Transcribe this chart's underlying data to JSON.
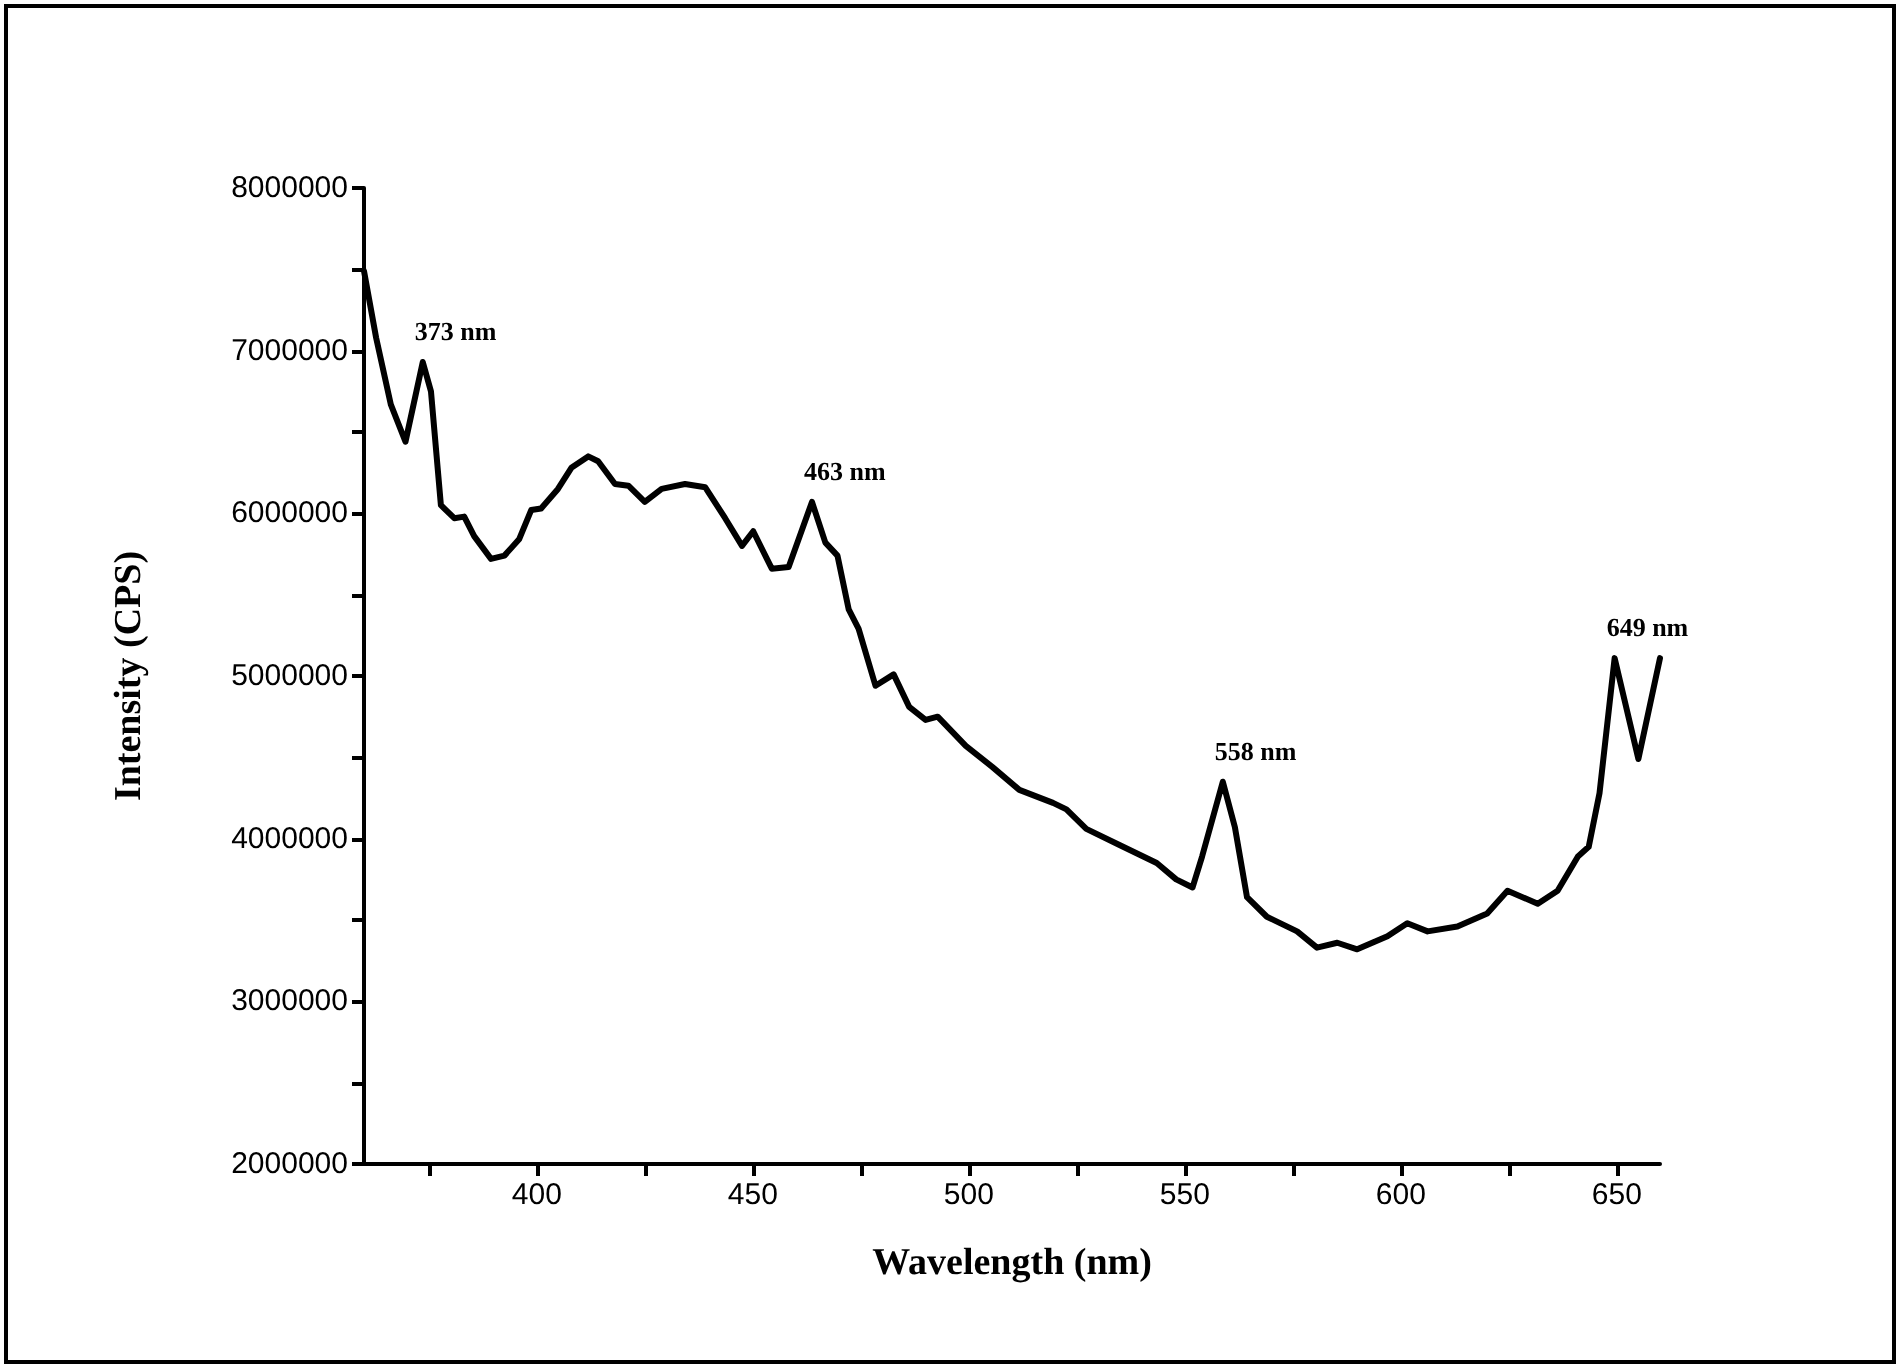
{
  "chart_data": {
    "type": "line",
    "xlabel": "Wavelength (nm)",
    "ylabel": "Intensity (CPS)",
    "xlim": [
      360,
      660
    ],
    "ylim": [
      2000000,
      8000000
    ],
    "xticks": [
      {
        "value": 375,
        "label": null
      },
      400,
      {
        "value": 425,
        "label": null
      },
      450,
      {
        "value": 475,
        "label": null
      },
      500,
      {
        "value": 525,
        "label": null
      },
      550,
      {
        "value": 575,
        "label": null
      },
      600,
      {
        "value": 625,
        "label": null
      },
      650
    ],
    "yticks": [
      2000000,
      {
        "value": 2500000,
        "label": null
      },
      3000000,
      {
        "value": 3500000,
        "label": null
      },
      4000000,
      {
        "value": 4500000,
        "label": null
      },
      5000000,
      {
        "value": 5500000,
        "label": null
      },
      6000000,
      {
        "value": 6500000,
        "label": null
      },
      7000000,
      {
        "value": 7500000,
        "label": null
      },
      8000000
    ],
    "grid": false,
    "marker": "none",
    "line_style": "solid",
    "annotations": [
      {
        "text": "373 nm",
        "x": 373.6,
        "y": 6930000
      },
      {
        "text": "463 nm",
        "x": 463.7,
        "y": 6070000
      },
      {
        "text": "558 nm",
        "x": 558.8,
        "y": 4350000
      },
      {
        "text": "649 nm",
        "x": 649.5,
        "y": 5110000
      }
    ],
    "series": [
      {
        "color": "#000000",
        "x": [
          360,
          362.8,
          366.2,
          369.6,
          373.6,
          375.5,
          377.8,
          380.9,
          383.2,
          385.5,
          389.4,
          392.5,
          395.9,
          398.7,
          401,
          404.9,
          408,
          411.9,
          414.2,
          418.1,
          421.2,
          425,
          428.9,
          434.3,
          439,
          443.6,
          447.5,
          450.1,
          454.4,
          458.3,
          463.7,
          466.8,
          469.6,
          472.2,
          474.5,
          478.4,
          482.6,
          486.2,
          490,
          492.8,
          499.3,
          505.5,
          511.7,
          519.5,
          522.6,
          527.2,
          535,
          543.5,
          548,
          551.8,
          554,
          558.8,
          561.6,
          564.4,
          569,
          576,
          580.6,
          585.3,
          589.9,
          596.9,
          601.5,
          606.2,
          613.1,
          620,
          624.7,
          631.7,
          636.3,
          641,
          643.5,
          646,
          649.5,
          655,
          660
        ],
        "values": [
          7490000,
          7080000,
          6670000,
          6440000,
          6930000,
          6750000,
          6050000,
          5970000,
          5980000,
          5860000,
          5720000,
          5740000,
          5840000,
          6020000,
          6030000,
          6150000,
          6280000,
          6350000,
          6320000,
          6180000,
          6170000,
          6070000,
          6150000,
          6180000,
          6160000,
          5970000,
          5800000,
          5890000,
          5660000,
          5670000,
          6070000,
          5820000,
          5740000,
          5410000,
          5290000,
          4940000,
          5010000,
          4810000,
          4730000,
          4750000,
          4570000,
          4440000,
          4300000,
          4220000,
          4180000,
          4060000,
          3960000,
          3850000,
          3750000,
          3700000,
          3890000,
          4350000,
          4070000,
          3640000,
          3520000,
          3430000,
          3330000,
          3360000,
          3320000,
          3400000,
          3480000,
          3430000,
          3460000,
          3540000,
          3680000,
          3600000,
          3680000,
          3890000,
          3950000,
          4280000,
          5110000,
          4490000,
          5110000
        ]
      }
    ]
  }
}
